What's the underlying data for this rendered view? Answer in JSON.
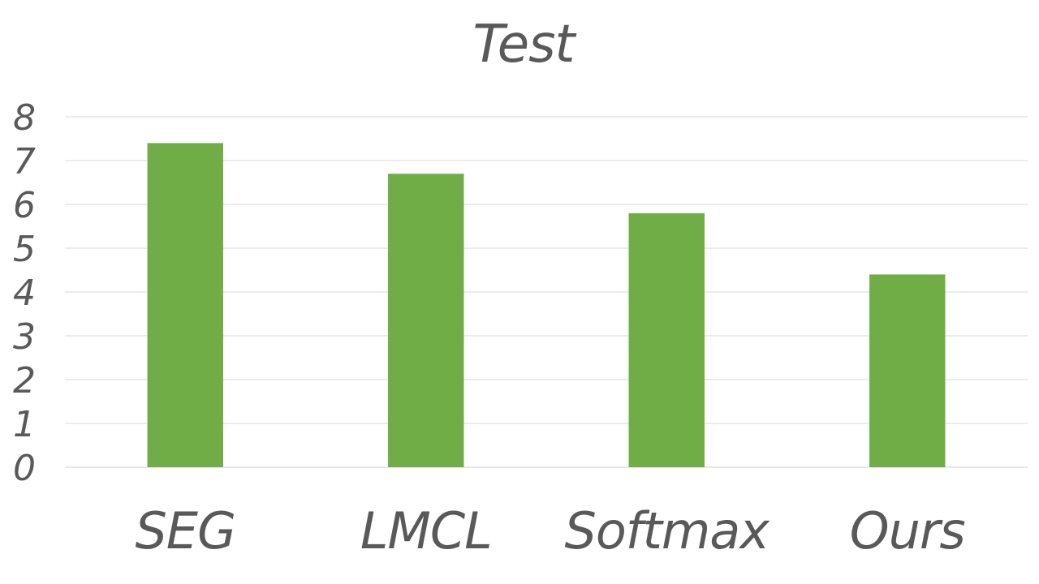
{
  "chart_data": {
    "type": "bar",
    "title": "Test",
    "xlabel": "",
    "ylabel": "",
    "categories": [
      "SEG",
      "LMCL",
      "Softmax",
      "Ours"
    ],
    "values": [
      7.4,
      6.7,
      5.8,
      4.4
    ],
    "ylim": [
      0,
      8
    ],
    "yticks": [
      "0",
      "1",
      "2",
      "3",
      "4",
      "5",
      "6",
      "7",
      "8"
    ],
    "grid": true,
    "legend": "none",
    "bar_color": "#70ad47"
  }
}
